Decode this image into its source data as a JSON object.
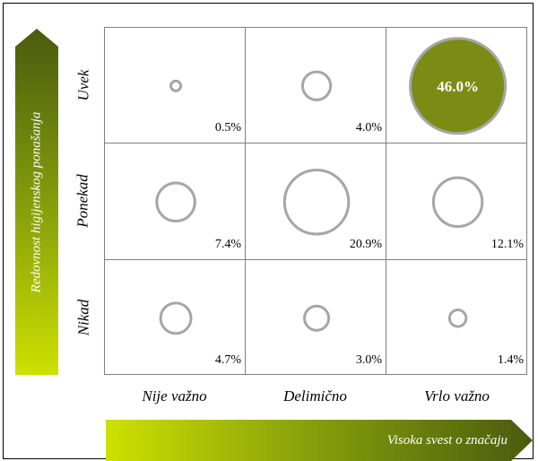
{
  "chart_data": {
    "type": "bubble-matrix",
    "ylabel": "Redovnost higijenskog ponašanja",
    "xlabel": "Visoka svest o značaju",
    "rows": [
      "Uvek",
      "Ponekad",
      "Nikad"
    ],
    "columns": [
      "Nije važno",
      "Delimično",
      "Vrlo važno"
    ],
    "values": [
      [
        0.5,
        4.0,
        46.0
      ],
      [
        7.4,
        20.9,
        12.1
      ],
      [
        4.7,
        3.0,
        1.4
      ]
    ],
    "labels": [
      [
        "0.5%",
        "4.0%",
        "46.0%"
      ],
      [
        "7.4%",
        "20.9%",
        "12.1%"
      ],
      [
        "4.7%",
        "3.0%",
        "1.4%"
      ]
    ],
    "highlight_color": "#7b8c14",
    "circle_color": "#a6a6a6",
    "arrow_colors": [
      "#4b5a0f",
      "#cde100"
    ]
  }
}
